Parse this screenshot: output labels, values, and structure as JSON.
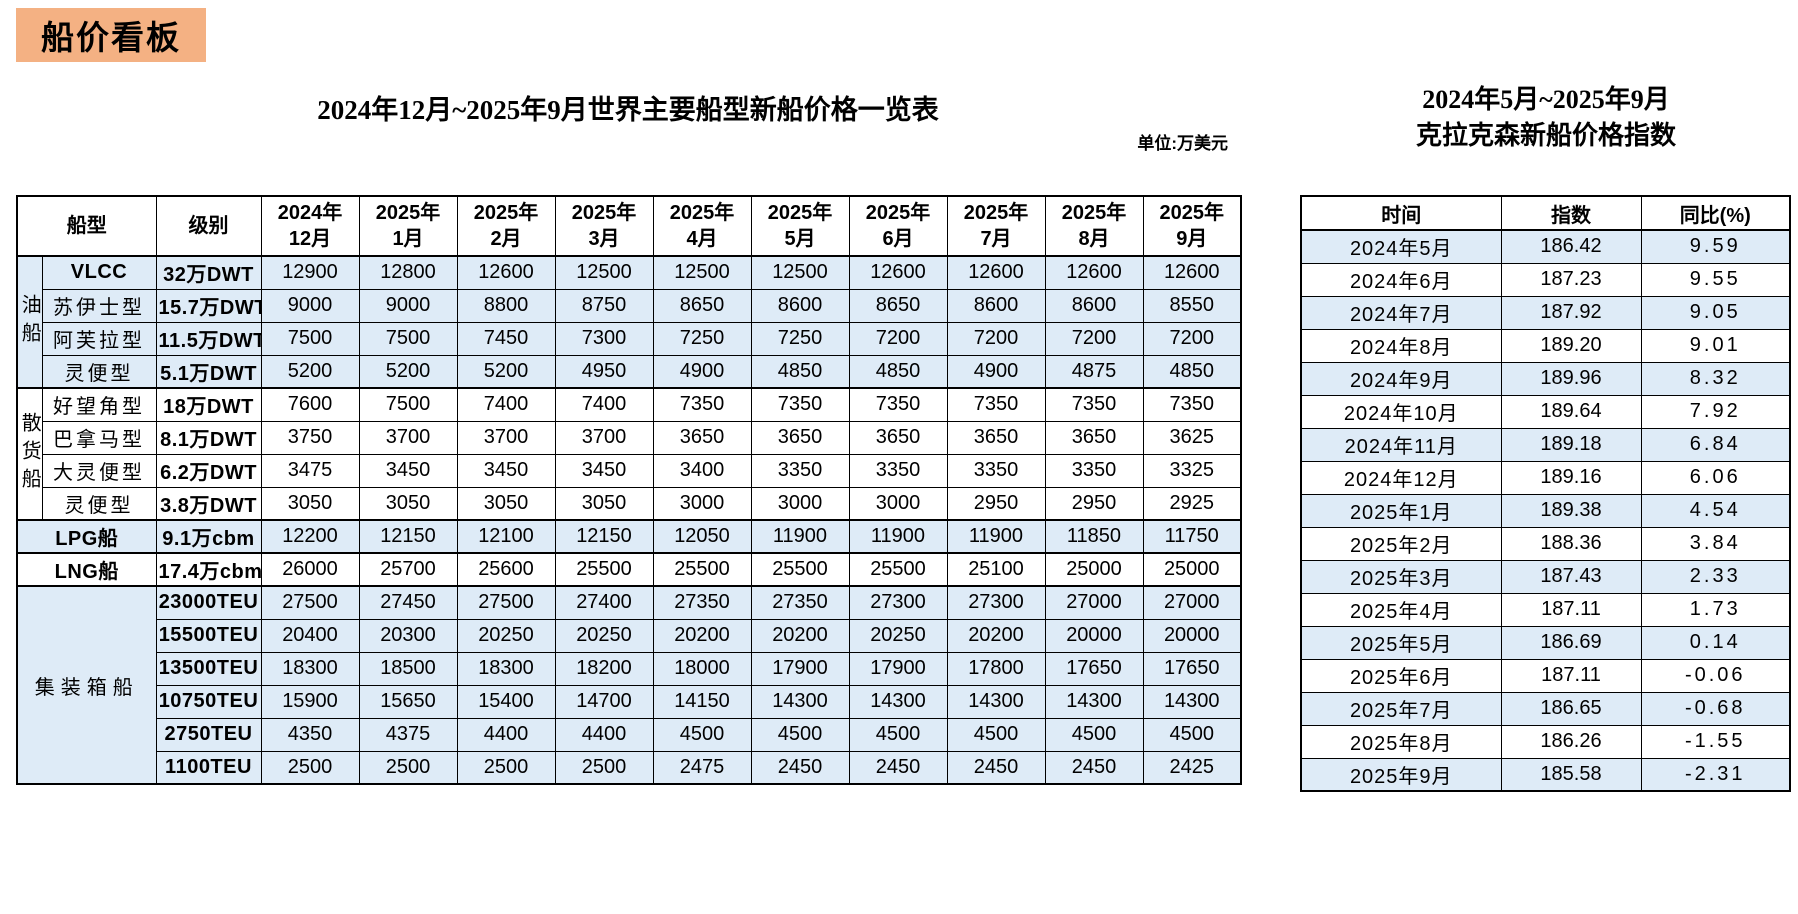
{
  "badge": "船价看板",
  "left_table": {
    "title": "2024年12月~2025年9月世界主要船型新船价格一览表",
    "unit": "单位:万美元",
    "headers": {
      "ship_type": "船型",
      "class": "级别"
    },
    "month_headers": [
      "2024年\n12月",
      "2025年\n1月",
      "2025年\n2月",
      "2025年\n3月",
      "2025年\n4月",
      "2025年\n5月",
      "2025年\n6月",
      "2025年\n7月",
      "2025年\n8月",
      "2025年\n9月"
    ],
    "groups": {
      "oil": "油船",
      "bulk": "散货船",
      "container": "集装箱船"
    },
    "rows": [
      {
        "name": "VLCC",
        "class": "32万DWT",
        "values": [
          12900,
          12800,
          12600,
          12500,
          12500,
          12500,
          12600,
          12600,
          12600,
          12600
        ]
      },
      {
        "name": "苏伊士型",
        "class": "15.7万DWT",
        "values": [
          9000,
          9000,
          8800,
          8750,
          8650,
          8600,
          8650,
          8600,
          8600,
          8550
        ]
      },
      {
        "name": "阿芙拉型",
        "class": "11.5万DWT",
        "values": [
          7500,
          7500,
          7450,
          7300,
          7250,
          7250,
          7200,
          7200,
          7200,
          7200
        ]
      },
      {
        "name": "灵便型",
        "class": "5.1万DWT",
        "values": [
          5200,
          5200,
          5200,
          4950,
          4900,
          4850,
          4850,
          4900,
          4875,
          4850
        ]
      },
      {
        "name": "好望角型",
        "class": "18万DWT",
        "values": [
          7600,
          7500,
          7400,
          7400,
          7350,
          7350,
          7350,
          7350,
          7350,
          7350
        ]
      },
      {
        "name": "巴拿马型",
        "class": "8.1万DWT",
        "values": [
          3750,
          3700,
          3700,
          3700,
          3650,
          3650,
          3650,
          3650,
          3650,
          3625
        ]
      },
      {
        "name": "大灵便型",
        "class": "6.2万DWT",
        "values": [
          3475,
          3450,
          3450,
          3450,
          3400,
          3350,
          3350,
          3350,
          3350,
          3325
        ]
      },
      {
        "name": "灵便型",
        "class": "3.8万DWT",
        "values": [
          3050,
          3050,
          3050,
          3050,
          3000,
          3000,
          3000,
          2950,
          2950,
          2925
        ]
      },
      {
        "name": "LPG船",
        "class": "9.1万cbm",
        "values": [
          12200,
          12150,
          12100,
          12150,
          12050,
          11900,
          11900,
          11900,
          11850,
          11750
        ]
      },
      {
        "name": "LNG船",
        "class": "17.4万cbm",
        "values": [
          26000,
          25700,
          25600,
          25500,
          25500,
          25500,
          25500,
          25100,
          25000,
          25000
        ]
      },
      {
        "name": "集装箱船",
        "class": "23000TEU",
        "values": [
          27500,
          27450,
          27500,
          27400,
          27350,
          27350,
          27300,
          27300,
          27000,
          27000
        ]
      },
      {
        "name": "集装箱船",
        "class": "15500TEU",
        "values": [
          20400,
          20300,
          20250,
          20250,
          20200,
          20200,
          20250,
          20200,
          20000,
          20000
        ]
      },
      {
        "name": "集装箱船",
        "class": "13500TEU",
        "values": [
          18300,
          18500,
          18300,
          18200,
          18000,
          17900,
          17900,
          17800,
          17650,
          17650
        ]
      },
      {
        "name": "集装箱船",
        "class": "10750TEU",
        "values": [
          15900,
          15650,
          15400,
          14700,
          14150,
          14300,
          14300,
          14300,
          14300,
          14300
        ]
      },
      {
        "name": "集装箱船",
        "class": "2750TEU",
        "values": [
          4350,
          4375,
          4400,
          4400,
          4500,
          4500,
          4500,
          4500,
          4500,
          4500
        ]
      },
      {
        "name": "集装箱船",
        "class": "1100TEU",
        "values": [
          2500,
          2500,
          2500,
          2500,
          2475,
          2450,
          2450,
          2450,
          2450,
          2425
        ]
      }
    ]
  },
  "right_table": {
    "title_line1": "2024年5月~2025年9月",
    "title_line2": "克拉克森新船价格指数",
    "headers": [
      "时间",
      "指数",
      "同比(%)"
    ],
    "rows": [
      [
        "2024年5月",
        "186.42",
        "9.59"
      ],
      [
        "2024年6月",
        "187.23",
        "9.55"
      ],
      [
        "2024年7月",
        "187.92",
        "9.05"
      ],
      [
        "2024年8月",
        "189.20",
        "9.01"
      ],
      [
        "2024年9月",
        "189.96",
        "8.32"
      ],
      [
        "2024年10月",
        "189.64",
        "7.92"
      ],
      [
        "2024年11月",
        "189.18",
        "6.84"
      ],
      [
        "2024年12月",
        "189.16",
        "6.06"
      ],
      [
        "2025年1月",
        "189.38",
        "4.54"
      ],
      [
        "2025年2月",
        "188.36",
        "3.84"
      ],
      [
        "2025年3月",
        "187.43",
        "2.33"
      ],
      [
        "2025年4月",
        "187.11",
        "1.73"
      ],
      [
        "2025年5月",
        "186.69",
        "0.14"
      ],
      [
        "2025年6月",
        "187.11",
        "-0.06"
      ],
      [
        "2025年7月",
        "186.65",
        "-0.68"
      ],
      [
        "2025年8月",
        "186.26",
        "-1.55"
      ],
      [
        "2025年9月",
        "185.58",
        "-2.31"
      ]
    ]
  }
}
